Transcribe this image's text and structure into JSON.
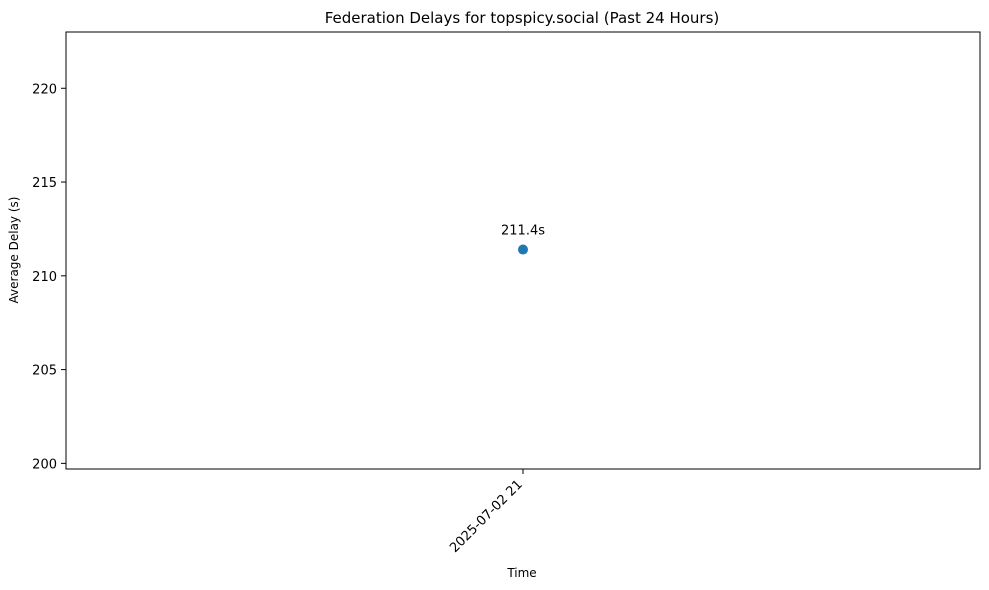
{
  "chart_data": {
    "type": "scatter",
    "title": "Federation Delays for topspicy.social (Past 24 Hours)",
    "xlabel": "Time",
    "ylabel": "Average Delay (s)",
    "ylim": [
      199.7,
      223
    ],
    "yticks": [
      200,
      205,
      210,
      215,
      220
    ],
    "x_categories": [
      "2025-07-02 21"
    ],
    "series": [
      {
        "values": [
          211.4
        ],
        "color": "#1f77b4"
      }
    ],
    "data_labels": [
      "211.4s"
    ],
    "grid": false,
    "legend": "none"
  }
}
